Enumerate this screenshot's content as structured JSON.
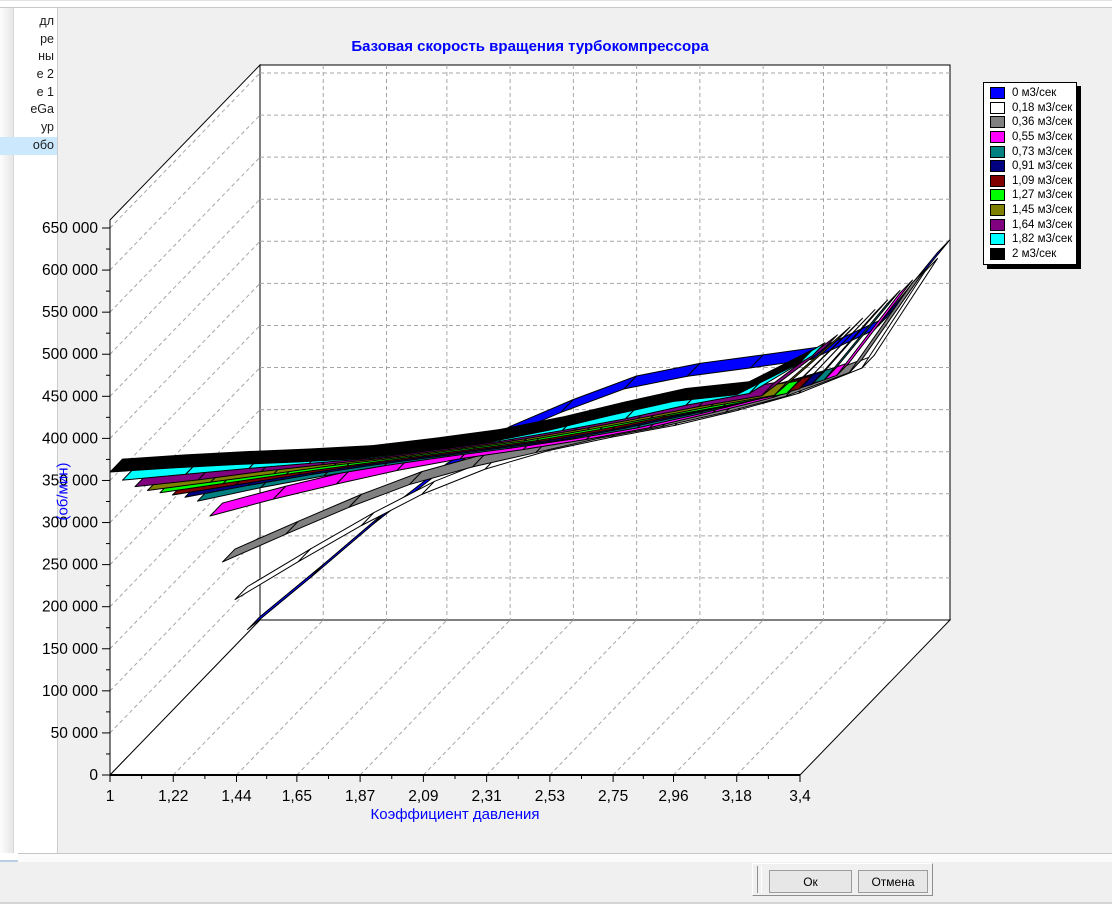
{
  "background_window": {
    "list_items": [
      "дл",
      "ре",
      "ны",
      "е 2",
      "е 1",
      "eGa",
      "ур",
      "обо"
    ],
    "selected_item": "обо"
  },
  "dialog": {
    "buttons": {
      "ok": "Ок",
      "cancel": "Отмена"
    }
  },
  "chart_data": {
    "type": "line",
    "style": "3d-ribbon",
    "title": "Базовая скорость вращения турбокомпрессора",
    "xlabel": "Коэффициент давления",
    "ylabel": "(об/мин)",
    "x": [
      1,
      1.22,
      1.44,
      1.65,
      1.87,
      2.09,
      2.31,
      2.53,
      2.75,
      2.96,
      3.18,
      3.4
    ],
    "x_tick_labels": [
      "1",
      "1,22",
      "1,44",
      "1,65",
      "1,87",
      "2,09",
      "2,31",
      "2,53",
      "2,75",
      "2,96",
      "3,18",
      "3,4"
    ],
    "ylim": [
      0,
      650000
    ],
    "y_tick_step": 50000,
    "y_tick_labels": [
      "0",
      "50 000",
      "100 000",
      "150 000",
      "200 000",
      "250 000",
      "300 000",
      "350 000",
      "400 000",
      "450 000",
      "500 000",
      "550 000",
      "600 000",
      "650 000"
    ],
    "grid": true,
    "legend_position": "top-right",
    "series": [
      {
        "name": "0 м3/сек",
        "color": "#0000FF",
        "values": [
          4000,
          66000,
          130000,
          186000,
          230000,
          262000,
          290000,
          305000,
          315000,
          325000,
          360000,
          452000
        ]
      },
      {
        "name": "0,18 м3/сек",
        "color": "#FFFFFF",
        "values": [
          55000,
          100000,
          143000,
          180000,
          210000,
          232000,
          248000,
          262000,
          280000,
          300000,
          330000,
          445000
        ]
      },
      {
        "name": "0,36 м3/сек",
        "color": "#808080",
        "values": [
          115000,
          148000,
          180000,
          207000,
          228000,
          245000,
          262000,
          276000,
          293000,
          312000,
          340000,
          447000
        ]
      },
      {
        "name": "0,55 м3/сек",
        "color": "#FF00FF",
        "values": [
          185000,
          205000,
          223000,
          239000,
          253000,
          264000,
          276000,
          290000,
          308000,
          326000,
          352000,
          450000
        ]
      },
      {
        "name": "0,73 м3/сек",
        "color": "#008080",
        "values": [
          218000,
          234000,
          248000,
          260000,
          271000,
          281000,
          292000,
          305000,
          322000,
          340000,
          362000,
          453000
        ]
      },
      {
        "name": "0,91 м3/сек",
        "color": "#000080",
        "values": [
          238000,
          252000,
          265000,
          276000,
          286000,
          296000,
          306000,
          320000,
          336000,
          352000,
          372000,
          457000
        ]
      },
      {
        "name": "1,09 м3/сек",
        "color": "#800000",
        "values": [
          256000,
          268000,
          280000,
          291000,
          301000,
          311000,
          321000,
          334000,
          350000,
          364000,
          382000,
          461000
        ]
      },
      {
        "name": "1,27 м3/сек",
        "color": "#00FF00",
        "values": [
          274000,
          285000,
          296000,
          306000,
          316000,
          326000,
          336000,
          349000,
          364000,
          377000,
          392000,
          466000
        ]
      },
      {
        "name": "1,45 м3/сек",
        "color": "#808000",
        "values": [
          292000,
          302000,
          312000,
          322000,
          331000,
          341000,
          351000,
          364000,
          378000,
          392000,
          405000,
          471000
        ]
      },
      {
        "name": "1,64 м3/сек",
        "color": "#800080",
        "values": [
          312000,
          320000,
          330000,
          338000,
          346000,
          356000,
          366000,
          379000,
          393000,
          407000,
          420000,
          477000
        ]
      },
      {
        "name": "1,82 м3/сек",
        "color": "#00FFFF",
        "values": [
          335000,
          342000,
          349000,
          355000,
          361000,
          371000,
          381000,
          394000,
          408000,
          424000,
          438000,
          483000
        ]
      },
      {
        "name": "2 м3/сек",
        "color": "#000000",
        "values": [
          360000,
          365000,
          369000,
          372000,
          376000,
          385000,
          395000,
          410000,
          428000,
          444000,
          452000,
          490000
        ]
      }
    ]
  }
}
